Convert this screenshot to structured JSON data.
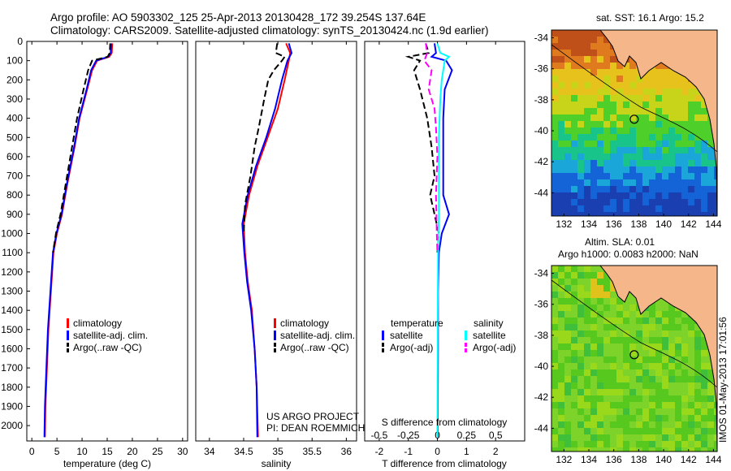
{
  "header": {
    "line1": "Argo profile: AO 5903302_125 25-Apr-2013 20130428_172 39.254S 137.64E",
    "line2": "Climatology: CARS2009. Satellite-adjusted climatology: synTS_20130424.nc (1.9d earlier)"
  },
  "colors": {
    "red": "#ff0000",
    "blue": "#0000ff",
    "black": "#000000",
    "cyan": "#00ffff",
    "magenta": "#ff00ff",
    "land": "#f5b78a"
  },
  "chart_data": [
    {
      "type": "line",
      "xlabel": "temperature (deg C)",
      "ylabel": "",
      "xlim": [
        -1,
        31
      ],
      "ylim": [
        2080,
        0
      ],
      "xticks": [
        0,
        5,
        10,
        15,
        20,
        25,
        30
      ],
      "yticks": [
        0,
        100,
        200,
        300,
        400,
        500,
        600,
        700,
        800,
        900,
        1000,
        1100,
        1200,
        1300,
        1400,
        1500,
        1600,
        1700,
        1800,
        1900,
        2000
      ],
      "legend": {
        "position": "center",
        "entries": [
          "climatology",
          "satellite-adj. clim.",
          "Argo(..raw -QC)"
        ]
      },
      "series": [
        {
          "name": "climatology",
          "color": "red",
          "dash": "solid",
          "points": [
            [
              16.0,
              10
            ],
            [
              15.9,
              60
            ],
            [
              15.4,
              80
            ],
            [
              13.0,
              100
            ],
            [
              12.0,
              150
            ],
            [
              11.0,
              250
            ],
            [
              9.5,
              400
            ],
            [
              8.5,
              550
            ],
            [
              7.0,
              750
            ],
            [
              6.0,
              900
            ],
            [
              5.0,
              1000
            ],
            [
              4.3,
              1100
            ],
            [
              3.8,
              1300
            ],
            [
              3.3,
              1500
            ],
            [
              3.0,
              1700
            ],
            [
              2.7,
              1900
            ],
            [
              2.6,
              2060
            ]
          ]
        },
        {
          "name": "satellite-adj. clim.",
          "color": "blue",
          "dash": "solid",
          "points": [
            [
              15.8,
              10
            ],
            [
              15.7,
              60
            ],
            [
              15.2,
              80
            ],
            [
              12.8,
              100
            ],
            [
              11.8,
              150
            ],
            [
              10.9,
              250
            ],
            [
              9.4,
              400
            ],
            [
              8.4,
              550
            ],
            [
              6.9,
              750
            ],
            [
              5.9,
              900
            ],
            [
              4.9,
              1000
            ],
            [
              4.2,
              1100
            ],
            [
              3.7,
              1300
            ],
            [
              3.2,
              1500
            ],
            [
              2.9,
              1700
            ],
            [
              2.6,
              1900
            ],
            [
              2.5,
              2060
            ]
          ]
        },
        {
          "name": "Argo(..raw -QC)",
          "color": "black",
          "dash": "dashed",
          "points": [
            [
              15.6,
              10
            ],
            [
              15.5,
              60
            ],
            [
              15.1,
              80
            ],
            [
              12.0,
              100
            ],
            [
              11.2,
              150
            ],
            [
              10.3,
              250
            ],
            [
              9.0,
              400
            ],
            [
              8.0,
              550
            ],
            [
              6.7,
              750
            ],
            [
              5.7,
              900
            ],
            [
              4.8,
              1000
            ],
            [
              4.2,
              1100
            ]
          ]
        }
      ]
    },
    {
      "type": "line",
      "xlabel": "salinity",
      "ylabel": "",
      "xlim": [
        33.8,
        36.15
      ],
      "ylim": [
        2080,
        0
      ],
      "xticks": [
        34,
        34.5,
        35,
        35.5,
        36
      ],
      "legend": {
        "position": "center",
        "entries": [
          "climatology",
          "satellite-adj. clim.",
          "Argo(..raw -QC)"
        ]
      },
      "annotation": [
        "US ARGO PROJECT",
        "PI: DEAN ROEMMICH"
      ],
      "series": [
        {
          "name": "climatology",
          "color": "red",
          "dash": "solid",
          "points": [
            [
              35.12,
              10
            ],
            [
              35.18,
              60
            ],
            [
              35.16,
              100
            ],
            [
              35.1,
              200
            ],
            [
              35.0,
              350
            ],
            [
              34.85,
              500
            ],
            [
              34.7,
              650
            ],
            [
              34.58,
              800
            ],
            [
              34.5,
              950
            ],
            [
              34.52,
              1100
            ],
            [
              34.56,
              1250
            ],
            [
              34.62,
              1400
            ],
            [
              34.66,
              1600
            ],
            [
              34.69,
              1800
            ],
            [
              34.71,
              2060
            ]
          ]
        },
        {
          "name": "satellite-adj. clim.",
          "color": "blue",
          "dash": "solid",
          "points": [
            [
              35.16,
              10
            ],
            [
              35.2,
              60
            ],
            [
              35.14,
              100
            ],
            [
              35.06,
              200
            ],
            [
              34.96,
              350
            ],
            [
              34.83,
              500
            ],
            [
              34.68,
              650
            ],
            [
              34.56,
              800
            ],
            [
              34.48,
              950
            ],
            [
              34.51,
              1100
            ],
            [
              34.55,
              1250
            ],
            [
              34.61,
              1400
            ],
            [
              34.66,
              1600
            ],
            [
              34.69,
              1800
            ],
            [
              34.7,
              2060
            ]
          ]
        },
        {
          "name": "Argo(..raw -QC)",
          "color": "black",
          "dash": "dashed",
          "points": [
            [
              34.99,
              10
            ],
            [
              34.97,
              60
            ],
            [
              35.1,
              80
            ],
            [
              35.06,
              100
            ],
            [
              34.94,
              150
            ],
            [
              34.86,
              200
            ],
            [
              34.8,
              300
            ],
            [
              34.72,
              450
            ],
            [
              34.66,
              550
            ],
            [
              34.6,
              700
            ],
            [
              34.52,
              850
            ],
            [
              34.5,
              1000
            ]
          ]
        }
      ]
    },
    {
      "type": "line",
      "xlabel": "T difference from climatology",
      "title2": "S difference from climatology",
      "ylabel": "",
      "xlim": [
        -2.5,
        3.0
      ],
      "ylim": [
        2080,
        0
      ],
      "xticks": [
        -2,
        -1,
        0,
        1,
        2
      ],
      "s_xticks": [
        -0.5,
        -0.25,
        0,
        0.25,
        0.5
      ],
      "legend": {
        "position": "center",
        "headers": [
          "temperature",
          "salinity"
        ],
        "entries": [
          "satellite",
          "Argo(-adj)",
          "satellite",
          "Argo(-adj)"
        ]
      },
      "series": [
        {
          "name": "temperature satellite",
          "color": "blue",
          "dash": "solid",
          "points": [
            [
              -0.1,
              10
            ],
            [
              -0.05,
              60
            ],
            [
              -0.2,
              80
            ],
            [
              0.3,
              100
            ],
            [
              0.5,
              150
            ],
            [
              0.25,
              250
            ],
            [
              0.2,
              400
            ],
            [
              0.2,
              600
            ],
            [
              0.2,
              800
            ],
            [
              0.4,
              900
            ],
            [
              0.15,
              1000
            ],
            [
              0.05,
              1100
            ],
            [
              0.02,
              1300
            ],
            [
              0.02,
              1600
            ],
            [
              0.01,
              2060
            ]
          ]
        },
        {
          "name": "temperature Argo(-adj)",
          "color": "black",
          "dash": "dashed",
          "points": [
            [
              -0.4,
              10
            ],
            [
              -0.3,
              60
            ],
            [
              -1.0,
              80
            ],
            [
              -0.6,
              100
            ],
            [
              -0.8,
              150
            ],
            [
              -0.6,
              250
            ],
            [
              -0.35,
              400
            ],
            [
              -0.2,
              550
            ],
            [
              -0.1,
              700
            ],
            [
              -0.25,
              800
            ],
            [
              -0.1,
              900
            ],
            [
              0.05,
              1000
            ],
            [
              0.0,
              1100
            ]
          ]
        },
        {
          "name": "salinity satellite",
          "color": "cyan",
          "dash": "solid",
          "points": [
            [
              0.0,
              10
            ],
            [
              0.1,
              60
            ],
            [
              0.4,
              80
            ],
            [
              0.25,
              100
            ],
            [
              0.15,
              200
            ],
            [
              0.1,
              300
            ],
            [
              0.05,
              500
            ],
            [
              0.05,
              700
            ],
            [
              0.05,
              900
            ],
            [
              0.02,
              1100
            ],
            [
              0.01,
              1400
            ],
            [
              0.0,
              2060
            ]
          ]
        },
        {
          "name": "salinity Argo(-adj)",
          "color": "magenta",
          "dash": "dashed",
          "points": [
            [
              -0.4,
              10
            ],
            [
              -0.35,
              60
            ],
            [
              -0.45,
              100
            ],
            [
              -0.2,
              150
            ],
            [
              -0.3,
              250
            ],
            [
              -0.1,
              350
            ],
            [
              -0.05,
              450
            ],
            [
              0.0,
              600
            ],
            [
              -0.05,
              800
            ],
            [
              -0.02,
              1000
            ],
            [
              0.0,
              1100
            ]
          ]
        }
      ]
    },
    {
      "type": "heatmap",
      "title": "sat. SST: 16.1 Argo: 15.2",
      "xlim": [
        131,
        144.3
      ],
      "ylim": [
        -45.5,
        -33.5
      ],
      "xticks": [
        132,
        134,
        136,
        138,
        140,
        142,
        144
      ],
      "yticks": [
        -34,
        -36,
        -38,
        -40,
        -42,
        -44
      ],
      "marker": [
        137.64,
        -39.254
      ]
    },
    {
      "type": "heatmap",
      "title": "Altim. SLA: 0.01",
      "subtitle": "Argo h1000: 0.0083 h2000: NaN",
      "xlim": [
        131,
        144.3
      ],
      "ylim": [
        -45.5,
        -33.5
      ],
      "xticks": [
        132,
        134,
        136,
        138,
        140,
        142,
        144
      ],
      "yticks": [
        -34,
        -36,
        -38,
        -40,
        -42,
        -44
      ],
      "marker": [
        137.64,
        -39.254
      ]
    }
  ],
  "side_label": "IMOS 01-May-2013 17:01:56"
}
